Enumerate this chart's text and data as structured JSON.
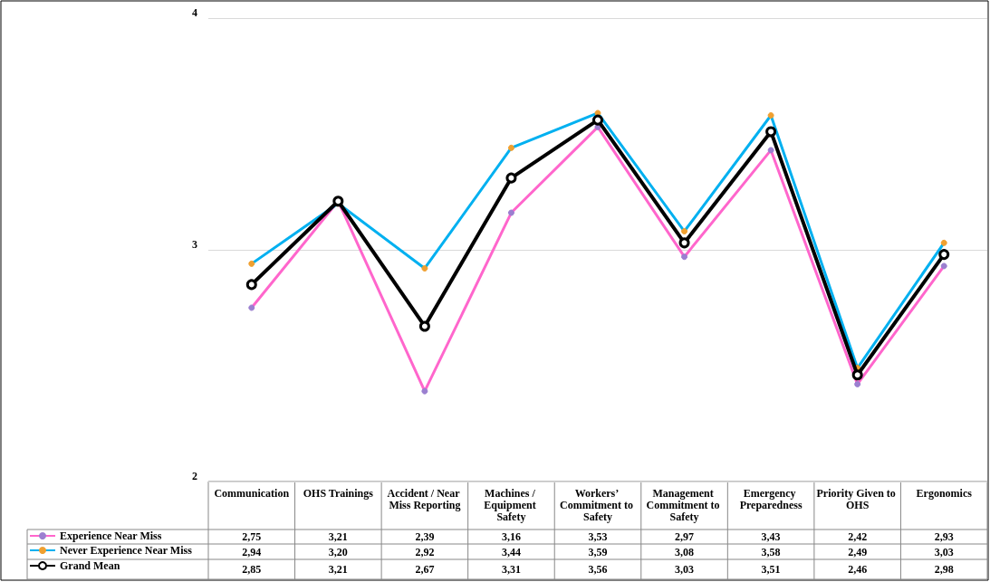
{
  "chart_data": {
    "type": "line",
    "categories": [
      "Communication",
      "OHS Trainings",
      "Accident / Near Miss Reporting",
      "Machines / Equipment Safety",
      "Workers’ Commitment to Safety",
      "Management Commitment to Safety",
      "Emergency Preparedness",
      "Priority Given to OHS",
      "Ergonomics"
    ],
    "series": [
      {
        "name": "Experience Near Miss",
        "color": "#ff66cc",
        "values": [
          2.75,
          3.21,
          2.39,
          3.16,
          3.53,
          2.97,
          3.43,
          2.42,
          2.93
        ],
        "value_labels": [
          "2,75",
          "3,21",
          "2,39",
          "3,16",
          "3,53",
          "2,97",
          "3,43",
          "2,42",
          "2,93"
        ]
      },
      {
        "name": "Never Experience Near Miss",
        "color": "#00b0f0",
        "values": [
          2.94,
          3.2,
          2.92,
          3.44,
          3.59,
          3.08,
          3.58,
          2.49,
          3.03
        ],
        "value_labels": [
          "2,94",
          "3,20",
          "2,92",
          "3,44",
          "3,59",
          "3,08",
          "3,58",
          "2,49",
          "3,03"
        ]
      },
      {
        "name": "Grand Mean",
        "color": "#000000",
        "values": [
          2.85,
          3.21,
          2.67,
          3.31,
          3.56,
          3.03,
          3.51,
          2.46,
          2.98
        ],
        "value_labels": [
          "2,85",
          "3,21",
          "2,67",
          "3,31",
          "3,56",
          "3,03",
          "3,51",
          "2,46",
          "2,98"
        ]
      }
    ],
    "ylim": [
      2,
      4
    ],
    "yticks": [
      2,
      3,
      4
    ],
    "grid": "y",
    "legend": "bottom left",
    "marker": "circle",
    "line_style": "solid"
  }
}
